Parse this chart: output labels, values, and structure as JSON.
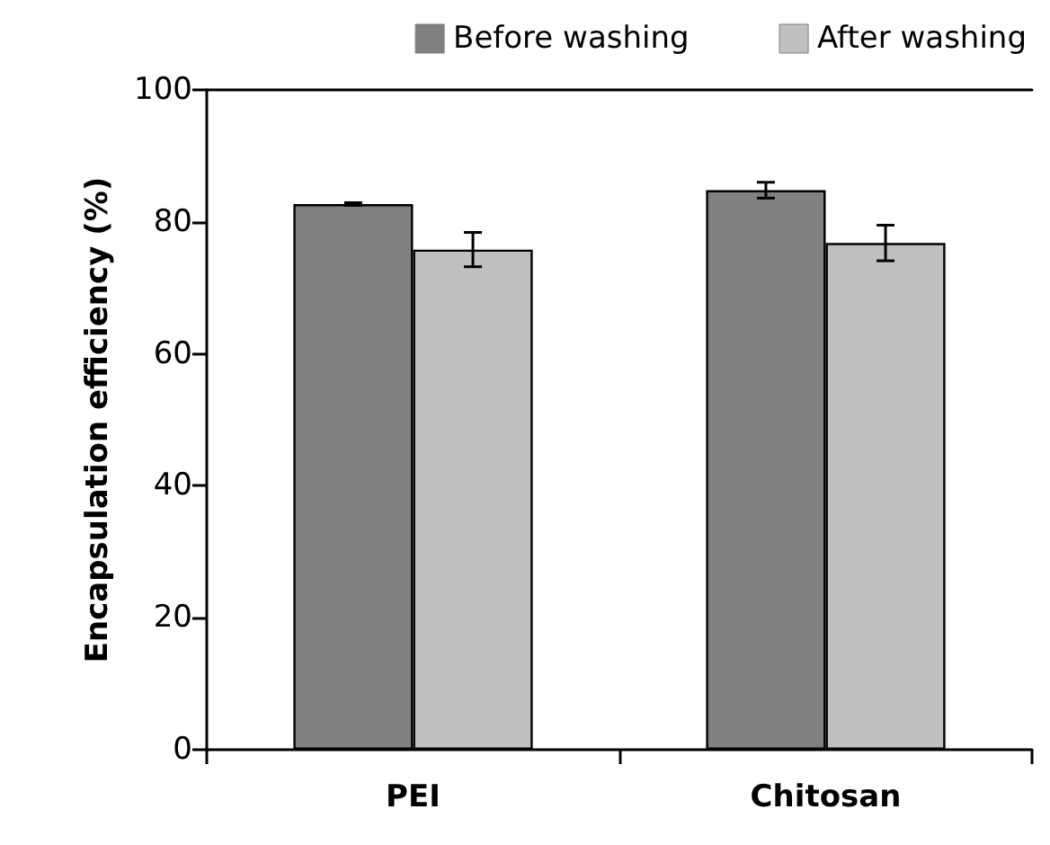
{
  "chart_data": {
    "type": "bar",
    "ylabel": "Encapsulation efficiency (%)",
    "categories": [
      "PEI",
      "Chitosan"
    ],
    "series": [
      {
        "name": "Before washing",
        "color": "#808080",
        "values": [
          82.7,
          84.8
        ],
        "errors": [
          0.2,
          1.2
        ]
      },
      {
        "name": "After washing",
        "color": "#c0c0c0",
        "values": [
          75.8,
          76.8
        ],
        "errors": [
          2.6,
          2.7
        ]
      }
    ],
    "ylim": [
      0,
      100
    ],
    "yticks": [
      0,
      20,
      40,
      60,
      80,
      100
    ],
    "grid": false,
    "legend": "top right"
  }
}
